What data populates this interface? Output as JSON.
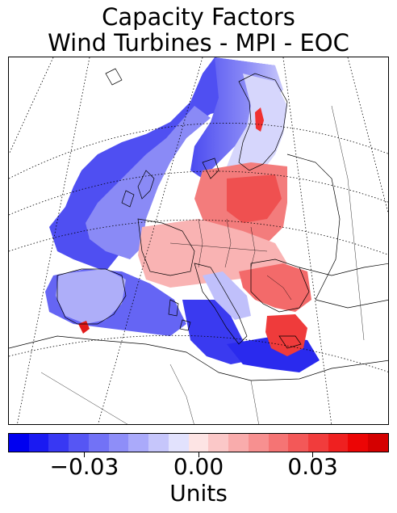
{
  "title_line1": "Capacity Factors",
  "title_line2": "Wind Turbines - MPI - EOC",
  "colorbar": {
    "label": "Units",
    "min": -0.05,
    "max": 0.05,
    "ticks": [
      {
        "value": -0.03,
        "label": "−0.03"
      },
      {
        "value": 0.0,
        "label": "0.00"
      },
      {
        "value": 0.03,
        "label": "0.03"
      }
    ],
    "colors": [
      "#0000f0",
      "#1a1af2",
      "#3838f3",
      "#5656f4",
      "#7272f6",
      "#8e8ef8",
      "#aaaafa",
      "#c6c6fb",
      "#e2e2fd",
      "#fde4e4",
      "#fbc8c8",
      "#f9acac",
      "#f79090",
      "#f57474",
      "#f35858",
      "#f13c3c",
      "#ef2020",
      "#ec0505",
      "#d40000"
    ]
  },
  "map": {
    "land_color": "#ffffff",
    "coast_color": "#000000",
    "graticule_color": "#000000"
  }
}
